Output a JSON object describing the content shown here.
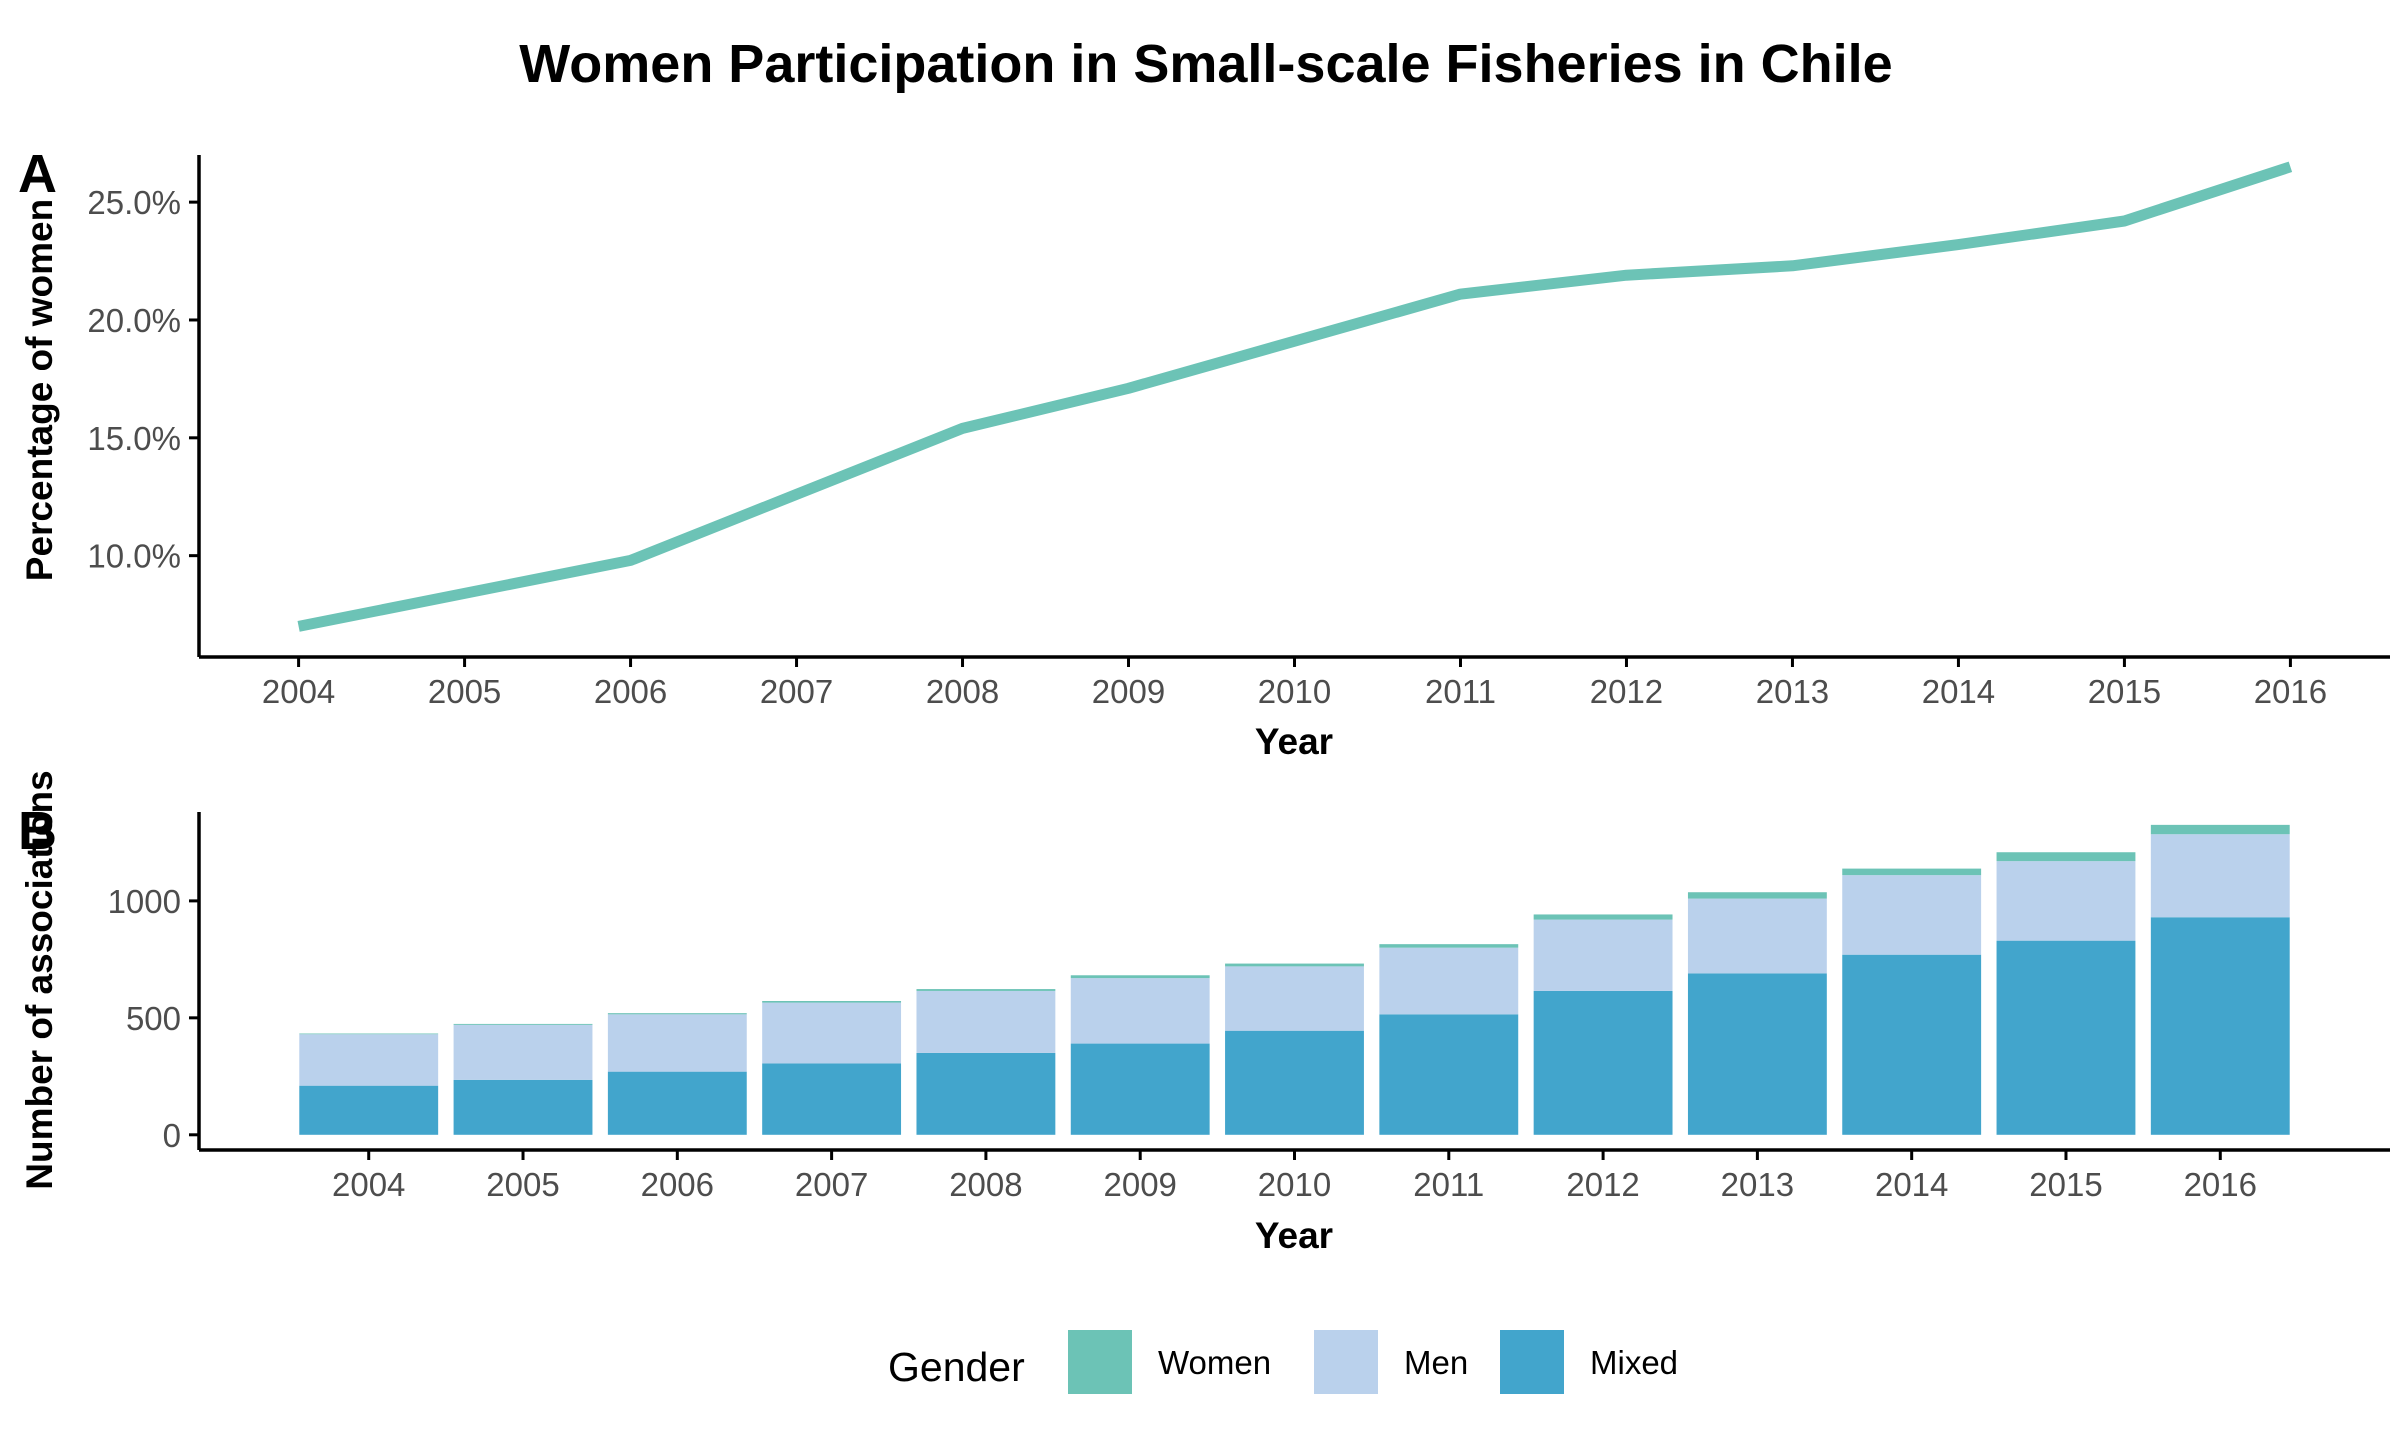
{
  "title": "Women Participation in Small-scale Fisheries in Chile",
  "colors": {
    "Women": "#6cc3b6",
    "Men": "#bad1ec",
    "Mixed": "#42a5cc",
    "axis": "#000000",
    "tick_text": "#4d4d4d"
  },
  "legend": {
    "title": "Gender",
    "items": [
      "Women",
      "Men",
      "Mixed"
    ]
  },
  "chart_data": [
    {
      "panel": "A",
      "type": "line",
      "xlabel": "Year",
      "ylabel": "Percentage of women",
      "x": [
        2004,
        2005,
        2006,
        2007,
        2008,
        2009,
        2010,
        2011,
        2012,
        2013,
        2014,
        2015,
        2016
      ],
      "y": [
        7.0,
        8.4,
        9.8,
        12.6,
        15.4,
        17.1,
        19.1,
        21.1,
        21.9,
        22.3,
        23.2,
        24.2,
        26.5
      ],
      "ylim": [
        5.7,
        27.0
      ],
      "yticks": [
        10,
        15,
        20,
        25
      ],
      "ytick_labels": [
        "10.0%",
        "15.0%",
        "20.0%",
        "25.0%"
      ],
      "xtick_labels": [
        "2004",
        "2005",
        "2006",
        "2007",
        "2008",
        "2009",
        "2010",
        "2011",
        "2012",
        "2013",
        "2014",
        "2015",
        "2016"
      ],
      "series_color": "#6cc3b6",
      "grid": false
    },
    {
      "panel": "B",
      "type": "bar",
      "stacked": true,
      "xlabel": "Year",
      "ylabel": "Number of associations",
      "categories": [
        "2004",
        "2005",
        "2006",
        "2007",
        "2008",
        "2009",
        "2010",
        "2011",
        "2012",
        "2013",
        "2014",
        "2015",
        "2016"
      ],
      "series": [
        {
          "name": "Mixed",
          "values": [
            210,
            235,
            270,
            305,
            350,
            390,
            445,
            515,
            615,
            690,
            770,
            830,
            930
          ]
        },
        {
          "name": "Men",
          "values": [
            220,
            235,
            245,
            260,
            265,
            280,
            275,
            285,
            305,
            320,
            340,
            340,
            355
          ]
        },
        {
          "name": "Women",
          "values": [
            3,
            4,
            5,
            7,
            8,
            12,
            12,
            15,
            22,
            27,
            28,
            38,
            40
          ]
        }
      ],
      "ylim": [
        -65,
        1380
      ],
      "yticks": [
        0,
        500,
        1000
      ],
      "ytick_labels": [
        "0",
        "500",
        "1000"
      ],
      "grid": false
    }
  ]
}
